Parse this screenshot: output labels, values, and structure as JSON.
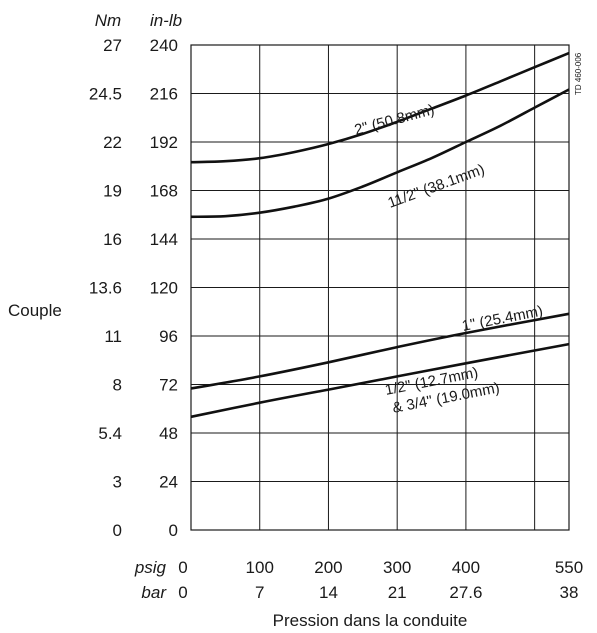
{
  "chart_data": {
    "type": "line",
    "reference": "TD 460-006",
    "ylabel": "Couple",
    "xlabel": "Pression dans la conduite",
    "y_units": {
      "nm": "Nm",
      "inlb": "in-lb"
    },
    "x_units": {
      "psig": "psig",
      "bar": "bar"
    },
    "y_ticks_nm": [
      "0",
      "3",
      "5.4",
      "8",
      "11",
      "13.6",
      "16",
      "19",
      "22",
      "24.5",
      "27"
    ],
    "y_ticks_inlb": [
      "0",
      "24",
      "48",
      "72",
      "96",
      "120",
      "144",
      "168",
      "192",
      "216",
      "240"
    ],
    "x_ticks_psig": [
      "0",
      "100",
      "200",
      "300",
      "400",
      "550"
    ],
    "x_ticks_bar": [
      "0",
      "7",
      "14",
      "21",
      "27.6",
      "38"
    ],
    "ylim_inlb": [
      0,
      240
    ],
    "xlim_psig": [
      0,
      550
    ],
    "grid": true,
    "series": [
      {
        "name": "2\" (50.8mm)",
        "x": [
          0,
          50,
          100,
          150,
          200,
          250,
          300,
          350,
          400,
          450,
          500,
          550
        ],
        "y": [
          182,
          182.5,
          184,
          187,
          191,
          196,
          202,
          208.5,
          215,
          222,
          229,
          236
        ]
      },
      {
        "name": "11/2\" (38.1mm)",
        "x": [
          0,
          50,
          100,
          150,
          200,
          250,
          300,
          350,
          400,
          450,
          500,
          550
        ],
        "y": [
          155,
          155.3,
          157,
          160,
          164,
          170,
          177,
          184,
          192,
          200,
          209,
          218
        ]
      },
      {
        "name": "1\" (25.4mm)",
        "x": [
          0,
          100,
          200,
          300,
          400,
          550
        ],
        "y": [
          70,
          76,
          83,
          90.5,
          97.5,
          107
        ]
      },
      {
        "name": "1/2\" (12.7mm)\n& 3/4\" (19.0mm)",
        "x": [
          0,
          100,
          200,
          300,
          400,
          550
        ],
        "y": [
          56,
          63,
          69.5,
          76,
          82.5,
          92
        ]
      }
    ]
  }
}
